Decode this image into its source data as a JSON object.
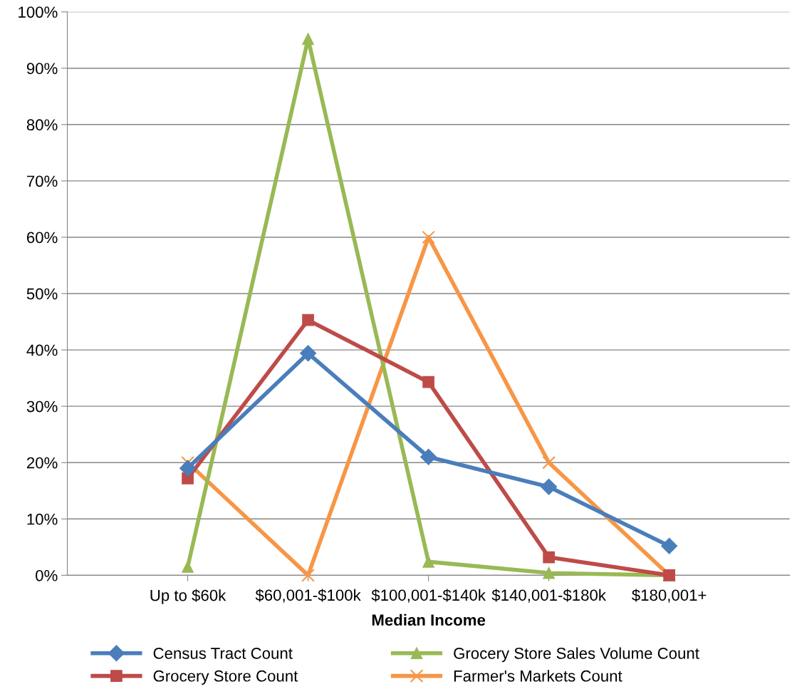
{
  "chart_data": {
    "type": "line",
    "xlabel": "Median Income",
    "categories": [
      "Up to $60k",
      "$60,001-$100k",
      "$100,001-$140k",
      "$140,001-$180k",
      "$180,001+"
    ],
    "series": [
      {
        "name": "Census Tract Count",
        "color": "#4a7ebb",
        "marker": "diamond",
        "values": [
          19,
          39.4,
          21,
          15.7,
          5.2
        ]
      },
      {
        "name": "Grocery Store Count",
        "color": "#be4b48",
        "marker": "square",
        "values": [
          17.2,
          45.3,
          34.3,
          3.2,
          0
        ]
      },
      {
        "name": "Grocery Store Sales Volume Count",
        "color": "#98b954",
        "marker": "triangle",
        "values": [
          1.5,
          95.2,
          2.4,
          0.4,
          0
        ]
      },
      {
        "name": "Farmer's Markets Count",
        "color": "#f79646",
        "marker": "cross",
        "values": [
          20,
          0,
          60,
          20,
          0
        ]
      }
    ],
    "ylim": [
      0,
      100
    ],
    "yticks": [
      {
        "value": 0,
        "label": "0%"
      },
      {
        "value": 10,
        "label": "10%"
      },
      {
        "value": 20,
        "label": "20%"
      },
      {
        "value": 30,
        "label": "30%"
      },
      {
        "value": 40,
        "label": "40%"
      },
      {
        "value": 50,
        "label": "50%"
      },
      {
        "value": 60,
        "label": "60%"
      },
      {
        "value": 70,
        "label": "70%"
      },
      {
        "value": 80,
        "label": "80%"
      },
      {
        "value": 90,
        "label": "90%"
      },
      {
        "value": 100,
        "label": "100%"
      }
    ],
    "grid": "y",
    "legend": "bottom",
    "line_style": "solid"
  }
}
